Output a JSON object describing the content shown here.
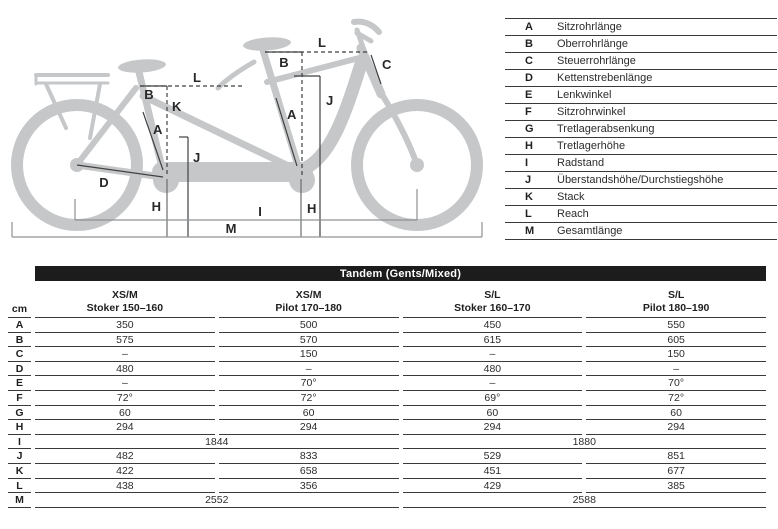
{
  "diagram": {
    "marks": {
      "stoker_l": "L",
      "stoker_b": "B",
      "stoker_k": "K",
      "stoker_a": "A",
      "d": "D",
      "stoker_h": "H",
      "stoker_j": "J",
      "pilot_l": "L",
      "pilot_b": "B",
      "pilot_a": "A",
      "c": "C",
      "pilot_j": "J",
      "pilot_h": "H",
      "i": "I",
      "m": "M"
    },
    "bike_color": "#c5c7c8",
    "line_color": "#3f4142"
  },
  "legend": {
    "rows": [
      {
        "key": "A",
        "label": "Sitzrohrlänge"
      },
      {
        "key": "B",
        "label": "Oberrohrlänge"
      },
      {
        "key": "C",
        "label": "Steuerrohrlänge"
      },
      {
        "key": "D",
        "label": "Kettenstrebenlänge"
      },
      {
        "key": "E",
        "label": "Lenkwinkel"
      },
      {
        "key": "F",
        "label": "Sitzrohrwinkel"
      },
      {
        "key": "G",
        "label": "Tretlagerabsenkung"
      },
      {
        "key": "H",
        "label": "Tretlagerhöhe"
      },
      {
        "key": "I",
        "label": "Radstand"
      },
      {
        "key": "J",
        "label": "Überstandshöhe/Durchstiegshöhe"
      },
      {
        "key": "K",
        "label": "Stack"
      },
      {
        "key": "L",
        "label": "Reach"
      },
      {
        "key": "M",
        "label": "Gesamtlänge"
      }
    ]
  },
  "table": {
    "title": "Tandem (Gents/Mixed)",
    "unit": "cm",
    "columns": [
      {
        "size": "XS/M",
        "rider": "Stoker 150–160"
      },
      {
        "size": "XS/M",
        "rider": "Pilot 170–180"
      },
      {
        "size": "S/L",
        "rider": "Stoker 160–170"
      },
      {
        "size": "S/L",
        "rider": "Pilot 180–190"
      }
    ],
    "rows": [
      {
        "key": "A",
        "merged": false,
        "values": [
          "350",
          "500",
          "450",
          "550"
        ]
      },
      {
        "key": "B",
        "merged": false,
        "values": [
          "575",
          "570",
          "615",
          "605"
        ]
      },
      {
        "key": "C",
        "merged": false,
        "values": [
          "–",
          "150",
          "–",
          "150"
        ]
      },
      {
        "key": "D",
        "merged": false,
        "values": [
          "480",
          "–",
          "480",
          "–"
        ]
      },
      {
        "key": "E",
        "merged": false,
        "values": [
          "–",
          "70°",
          "–",
          "70°"
        ]
      },
      {
        "key": "F",
        "merged": false,
        "values": [
          "72°",
          "72°",
          "69°",
          "72°"
        ]
      },
      {
        "key": "G",
        "merged": false,
        "values": [
          "60",
          "60",
          "60",
          "60"
        ]
      },
      {
        "key": "H",
        "merged": false,
        "values": [
          "294",
          "294",
          "294",
          "294"
        ]
      },
      {
        "key": "I",
        "merged": true,
        "values": [
          "1844",
          "1880"
        ]
      },
      {
        "key": "J",
        "merged": false,
        "values": [
          "482",
          "833",
          "529",
          "851"
        ]
      },
      {
        "key": "K",
        "merged": false,
        "values": [
          "422",
          "658",
          "451",
          "677"
        ]
      },
      {
        "key": "L",
        "merged": false,
        "values": [
          "438",
          "356",
          "429",
          "385"
        ]
      },
      {
        "key": "M",
        "merged": true,
        "values": [
          "2552",
          "2588"
        ]
      }
    ]
  }
}
